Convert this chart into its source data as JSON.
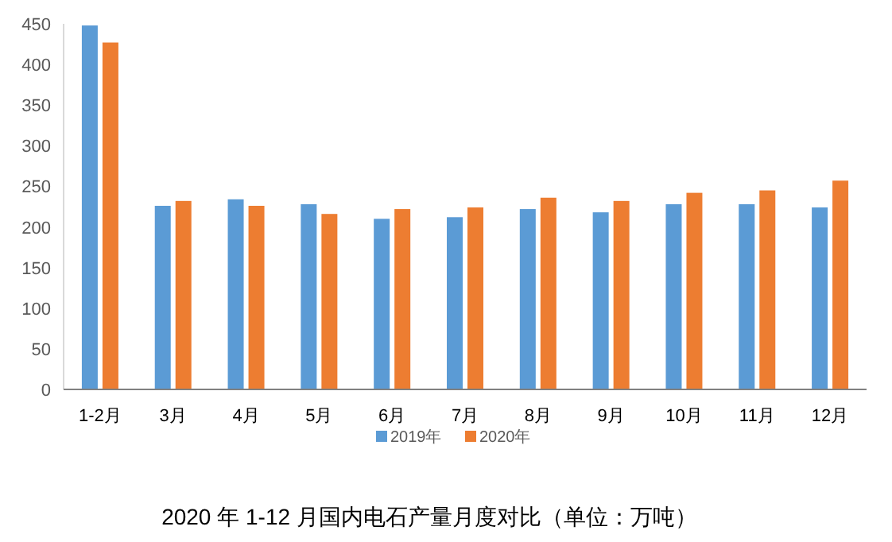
{
  "chart_data": {
    "type": "bar",
    "title": "2020 年 1-12 月国内电石产量月度对比（单位：万吨）",
    "categories": [
      "1-2月",
      "3月",
      "4月",
      "5月",
      "6月",
      "7月",
      "8月",
      "9月",
      "10月",
      "11月",
      "12月"
    ],
    "series": [
      {
        "name": "2019年",
        "color": "#5b9bd5",
        "values": [
          448,
          226,
          234,
          228,
          210,
          212,
          222,
          218,
          228,
          228,
          224
        ]
      },
      {
        "name": "2020年",
        "color": "#ed7d31",
        "values": [
          427,
          232,
          226,
          216,
          222,
          224,
          236,
          232,
          242,
          245,
          257
        ]
      }
    ],
    "ylim": [
      0,
      450
    ],
    "yticks": [
      0,
      50,
      100,
      150,
      200,
      250,
      300,
      350,
      400,
      450
    ],
    "legend": "bottom"
  }
}
